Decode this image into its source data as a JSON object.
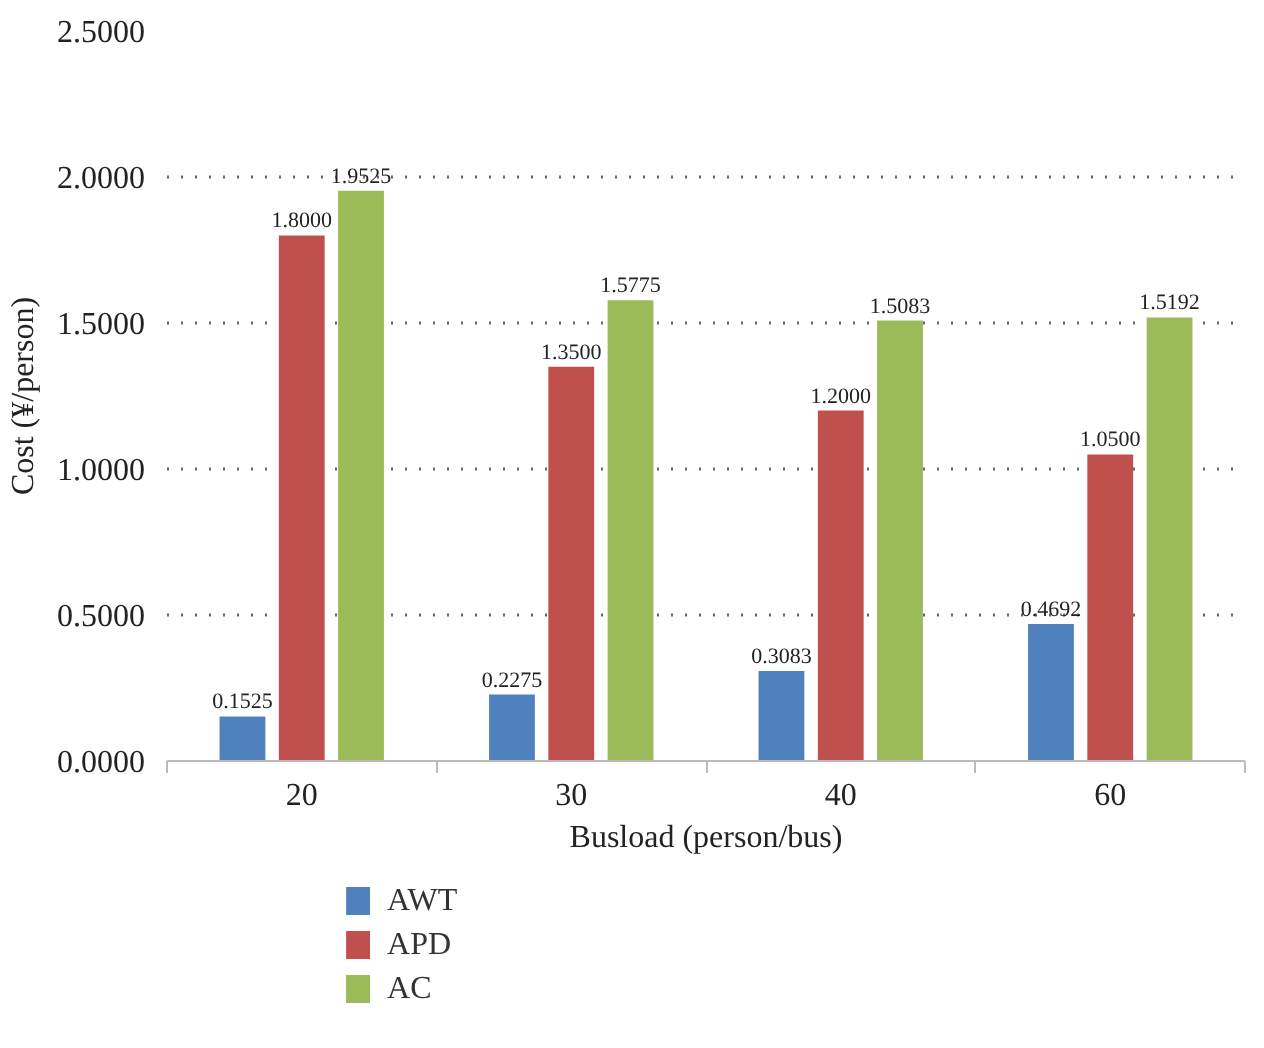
{
  "chart_data": {
    "type": "bar",
    "xlabel": "Busload (person/bus)",
    "ylabel": "Cost (¥/person)",
    "categories": [
      "20",
      "30",
      "40",
      "60"
    ],
    "series": [
      {
        "name": "AWT",
        "color": "#4f81bd",
        "values": [
          0.1525,
          0.2275,
          0.3083,
          0.4692
        ],
        "value_labels": [
          "0.1525",
          "0.2275",
          "0.3083",
          "0.4692"
        ]
      },
      {
        "name": "APD",
        "color": "#c0504d",
        "values": [
          1.8,
          1.35,
          1.2,
          1.05
        ],
        "value_labels": [
          "1.8000",
          "1.3500",
          "1.2000",
          "1.0500"
        ]
      },
      {
        "name": "AC",
        "color": "#9bbb59",
        "values": [
          1.9525,
          1.5775,
          1.5083,
          1.5192
        ],
        "value_labels": [
          "1.9525",
          "1.5775",
          "1.5083",
          "1.5192"
        ]
      }
    ],
    "ylim": [
      0,
      2.5
    ],
    "yticks": [
      {
        "value": 0,
        "label": "0.0000"
      },
      {
        "value": 0.5,
        "label": "0.5000"
      },
      {
        "value": 1,
        "label": "1.0000"
      },
      {
        "value": 1.5,
        "label": "1.5000"
      },
      {
        "value": 2,
        "label": "2.0000"
      },
      {
        "value": 2.5,
        "label": "2.5000"
      }
    ],
    "grid": "y",
    "legend": "bottom left"
  }
}
